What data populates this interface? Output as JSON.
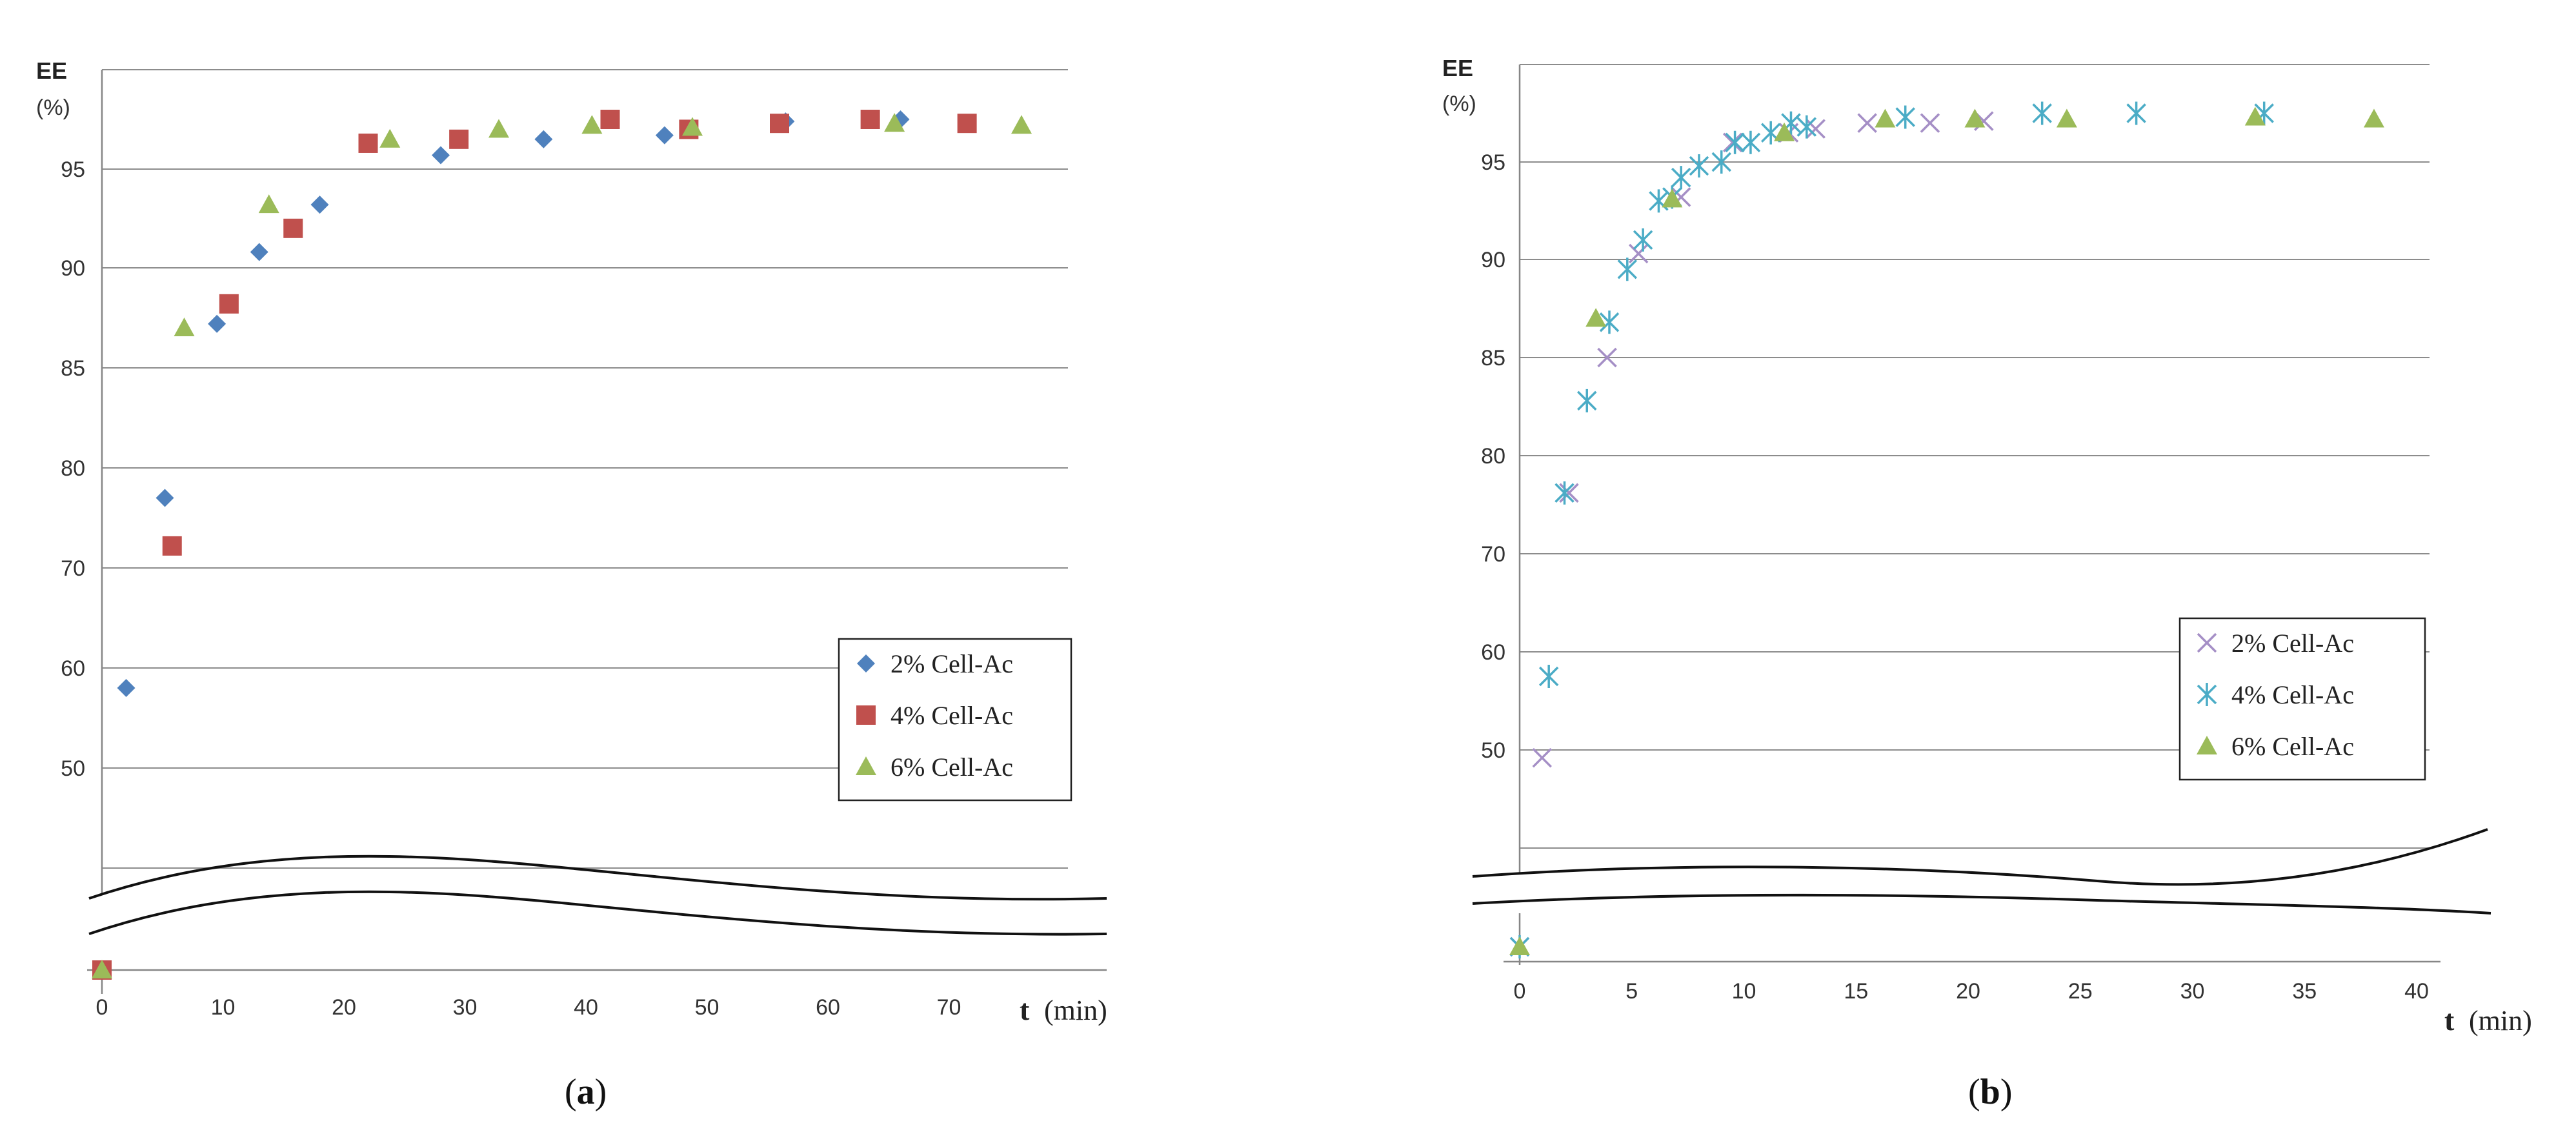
{
  "chart_data": [
    {
      "panel": "a",
      "type": "scatter",
      "caption_open": "(",
      "caption_letter": "a",
      "caption_close": ")",
      "ylabel": "EE",
      "ylabel_unit": "(%)",
      "xlabel_var": "t",
      "xlabel_unit": "(min)",
      "y_ticks": [
        "50",
        "60",
        "70",
        "80",
        "85",
        "90",
        "95"
      ],
      "x_ticks": [
        "0",
        "10",
        "20",
        "30",
        "40",
        "50",
        "60",
        "70"
      ],
      "xlim": [
        0,
        78
      ],
      "axis_break": "below 50",
      "series": [
        {
          "name": "2% Cell-Ac",
          "marker": "diamond",
          "color": "#4F81BD",
          "points": [
            [
              0,
              0
            ],
            [
              2,
              58
            ],
            [
              5.2,
              77
            ],
            [
              9.5,
              87.2
            ],
            [
              13,
              90.8
            ],
            [
              18,
              93.2
            ],
            [
              28,
              95.7
            ],
            [
              36.5,
              96.5
            ],
            [
              46.5,
              96.7
            ],
            [
              56.5,
              97.4
            ],
            [
              66,
              97.5
            ]
          ]
        },
        {
          "name": "4% Cell-Ac",
          "marker": "square",
          "color": "#C0504D",
          "points": [
            [
              0,
              0
            ],
            [
              5.8,
              72.2
            ],
            [
              10.5,
              88.2
            ],
            [
              15.8,
              92
            ],
            [
              22,
              96.3
            ],
            [
              29.5,
              96.5
            ],
            [
              42,
              97.5
            ],
            [
              48.5,
              97
            ],
            [
              56,
              97.3
            ],
            [
              63.5,
              97.5
            ],
            [
              71.5,
              97.3
            ]
          ]
        },
        {
          "name": "6% Cell-Ac",
          "marker": "triangle",
          "color": "#9BBB59",
          "points": [
            [
              0,
              0
            ],
            [
              6.8,
              87
            ],
            [
              13.8,
              93.2
            ],
            [
              23.8,
              96.5
            ],
            [
              32.8,
              97
            ],
            [
              40.5,
              97.2
            ],
            [
              48.8,
              97.1
            ],
            [
              65.5,
              97.3
            ],
            [
              76,
              97.2
            ]
          ]
        }
      ]
    },
    {
      "panel": "b",
      "type": "scatter",
      "caption_open": "(",
      "caption_letter": "b",
      "caption_close": ")",
      "ylabel": "EE",
      "ylabel_unit": "(%)",
      "xlabel_var": "t",
      "xlabel_unit": "(min)",
      "y_ticks": [
        "50",
        "60",
        "70",
        "80",
        "85",
        "90",
        "95"
      ],
      "x_ticks": [
        "0",
        "5",
        "10",
        "15",
        "20",
        "25",
        "30",
        "35",
        "40"
      ],
      "xlim": [
        0,
        40
      ],
      "axis_break": "below 50",
      "series": [
        {
          "name": "2% Cell-Ac",
          "marker": "x",
          "color": "#A58FC6",
          "points": [
            [
              0,
              0
            ],
            [
              1,
              48
            ],
            [
              2.2,
              76.2
            ],
            [
              3.9,
              85
            ],
            [
              5.3,
              90.3
            ],
            [
              7.2,
              93.2
            ],
            [
              9.5,
              96
            ],
            [
              12,
              96.5
            ],
            [
              13.2,
              96.7
            ],
            [
              15.5,
              97
            ],
            [
              18.3,
              97
            ],
            [
              20.7,
              97.1
            ]
          ]
        },
        {
          "name": "4% Cell-Ac",
          "marker": "asterisk",
          "color": "#4BACC6",
          "points": [
            [
              0,
              0
            ],
            [
              1.3,
              57.5
            ],
            [
              2,
              76.2
            ],
            [
              3,
              82.8
            ],
            [
              4,
              86.8
            ],
            [
              4.8,
              89.5
            ],
            [
              5.5,
              91
            ],
            [
              6.2,
              93
            ],
            [
              6.8,
              93.2
            ],
            [
              7.2,
              94.2
            ],
            [
              8,
              94.8
            ],
            [
              9,
              95
            ],
            [
              9.6,
              96
            ],
            [
              10.3,
              96
            ],
            [
              11.2,
              96.5
            ],
            [
              12.1,
              97
            ],
            [
              12.8,
              96.8
            ],
            [
              17.2,
              97.3
            ],
            [
              23.3,
              97.5
            ],
            [
              27.5,
              97.5
            ],
            [
              33.2,
              97.5
            ]
          ]
        },
        {
          "name": "6% Cell-Ac",
          "marker": "triangle",
          "color": "#9BBB59",
          "points": [
            [
              0,
              0
            ],
            [
              3.4,
              87
            ],
            [
              6.8,
              93.1
            ],
            [
              11.8,
              96.5
            ],
            [
              16.3,
              97.2
            ],
            [
              20.3,
              97.2
            ],
            [
              24.4,
              97.2
            ],
            [
              32.8,
              97.3
            ],
            [
              38.1,
              97.2
            ]
          ]
        }
      ]
    }
  ]
}
